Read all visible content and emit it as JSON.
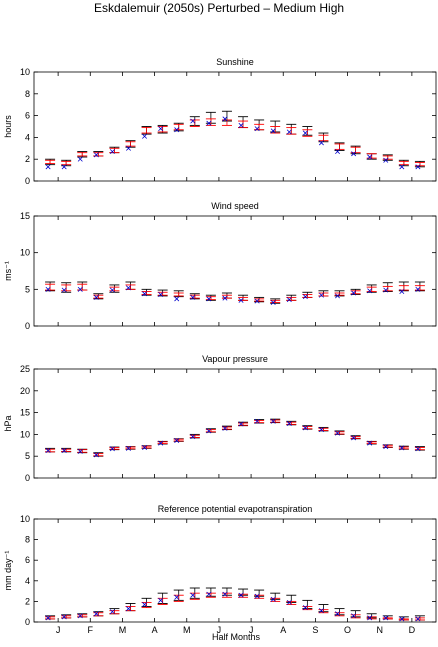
{
  "title": "Eskdalemuir (2050s) Perturbed – Medium High",
  "colors": {
    "error_bar": "#000000",
    "red_bar": "#ff0000",
    "marker": "#0000cc"
  },
  "x_axis": {
    "label": "Half Months",
    "ticks": [
      "J",
      "F",
      "M",
      "A",
      "M",
      "J",
      "J",
      "A",
      "S",
      "O",
      "N",
      "D"
    ]
  },
  "chart_data": [
    {
      "type": "errorbar",
      "title": "Sunshine",
      "ylabel": "hours",
      "ylim": [
        0,
        10
      ],
      "yticks": [
        0,
        2,
        4,
        6,
        8,
        10
      ],
      "x": [
        1,
        2,
        3,
        4,
        5,
        6,
        7,
        8,
        9,
        10,
        11,
        12,
        13,
        14,
        15,
        16,
        17,
        18,
        19,
        20,
        21,
        22,
        23,
        24
      ],
      "black_low": [
        1.5,
        1.4,
        2.2,
        2.3,
        2.6,
        3.1,
        4.3,
        4.4,
        4.6,
        5.1,
        5.3,
        5.5,
        4.9,
        4.7,
        4.5,
        4.3,
        4.2,
        3.6,
        2.8,
        2.5,
        2.0,
        1.9,
        1.4,
        1.3
      ],
      "black_high": [
        2.0,
        1.9,
        2.7,
        2.7,
        3.1,
        3.7,
        5.0,
        5.1,
        5.3,
        5.9,
        6.3,
        6.4,
        5.9,
        5.6,
        5.5,
        5.2,
        5.0,
        4.4,
        3.5,
        3.2,
        2.5,
        2.4,
        1.9,
        1.8
      ],
      "red_low": [
        1.6,
        1.5,
        2.3,
        2.3,
        2.6,
        3.2,
        4.4,
        4.5,
        4.7,
        5.0,
        5.1,
        5.1,
        4.9,
        4.7,
        4.4,
        4.3,
        4.1,
        3.7,
        2.9,
        2.6,
        2.1,
        2.0,
        1.5,
        1.4
      ],
      "red_high": [
        1.9,
        1.8,
        2.6,
        2.6,
        3.0,
        3.6,
        4.9,
        5.0,
        5.2,
        5.6,
        5.7,
        5.6,
        5.5,
        5.2,
        5.0,
        4.9,
        4.7,
        4.2,
        3.4,
        3.1,
        2.5,
        2.3,
        1.8,
        1.7
      ],
      "marker": [
        1.3,
        1.3,
        2.0,
        2.4,
        2.7,
        3.0,
        4.1,
        4.8,
        4.7,
        5.5,
        5.3,
        5.7,
        5.1,
        4.8,
        4.6,
        4.5,
        4.4,
        3.5,
        2.7,
        2.5,
        2.2,
        1.9,
        1.3,
        1.3
      ]
    },
    {
      "type": "errorbar",
      "title": "Wind speed",
      "ylabel": "ms⁻¹",
      "ylim": [
        0,
        15
      ],
      "yticks": [
        0,
        5,
        10,
        15
      ],
      "x": [
        1,
        2,
        3,
        4,
        5,
        6,
        7,
        8,
        9,
        10,
        11,
        12,
        13,
        14,
        15,
        16,
        17,
        18,
        19,
        20,
        21,
        22,
        23,
        24
      ],
      "black_low": [
        4.8,
        4.6,
        4.9,
        3.7,
        4.6,
        5.0,
        4.2,
        4.1,
        4.0,
        3.7,
        3.5,
        3.8,
        3.5,
        3.3,
        3.1,
        3.5,
        3.9,
        4.1,
        4.1,
        4.3,
        4.6,
        4.7,
        4.8,
        4.8
      ],
      "black_high": [
        6.0,
        5.9,
        6.0,
        4.4,
        5.6,
        6.0,
        5.0,
        4.9,
        4.8,
        4.4,
        4.2,
        4.5,
        4.2,
        3.9,
        3.7,
        4.2,
        4.6,
        4.8,
        4.8,
        5.0,
        5.6,
        5.9,
        6.0,
        6.0
      ],
      "red_low": [
        4.9,
        4.8,
        4.9,
        3.8,
        4.8,
        5.0,
        4.3,
        4.2,
        4.1,
        3.8,
        3.6,
        3.8,
        3.5,
        3.4,
        3.2,
        3.5,
        3.9,
        4.1,
        4.2,
        4.4,
        4.7,
        4.8,
        4.9,
        4.9
      ],
      "red_high": [
        5.7,
        5.6,
        5.7,
        4.2,
        5.3,
        5.6,
        4.7,
        4.6,
        4.5,
        4.2,
        4.0,
        4.2,
        3.9,
        3.7,
        3.5,
        3.9,
        4.3,
        4.5,
        4.5,
        4.8,
        5.3,
        5.4,
        5.5,
        5.5
      ],
      "marker": [
        5.0,
        4.9,
        5.0,
        3.9,
        4.9,
        5.2,
        4.4,
        4.3,
        3.7,
        3.9,
        3.7,
        3.8,
        3.5,
        3.4,
        3.2,
        3.6,
        4.0,
        4.2,
        4.1,
        4.5,
        4.8,
        4.9,
        4.7,
        5.0
      ]
    },
    {
      "type": "errorbar",
      "title": "Vapour pressure",
      "ylabel": "hPa",
      "ylim": [
        0,
        25
      ],
      "yticks": [
        0,
        5,
        10,
        15,
        20,
        25
      ],
      "x": [
        1,
        2,
        3,
        4,
        5,
        6,
        7,
        8,
        9,
        10,
        11,
        12,
        13,
        14,
        15,
        16,
        17,
        18,
        19,
        20,
        21,
        22,
        23,
        24
      ],
      "black_low": [
        6.0,
        6.0,
        5.8,
        5.0,
        6.5,
        6.6,
        6.8,
        7.8,
        8.4,
        9.2,
        10.5,
        11.1,
        12.0,
        12.6,
        12.7,
        12.2,
        11.2,
        10.8,
        10.0,
        9.0,
        7.8,
        7.0,
        6.6,
        6.4
      ],
      "black_high": [
        6.8,
        6.8,
        6.6,
        5.8,
        7.1,
        7.2,
        7.4,
        8.4,
        9.0,
        10.0,
        11.3,
        11.9,
        12.8,
        13.4,
        13.5,
        13.0,
        12.0,
        11.6,
        10.8,
        9.7,
        8.4,
        7.6,
        7.3,
        7.2
      ],
      "red_low": [
        6.0,
        6.1,
        5.9,
        5.1,
        6.6,
        6.7,
        6.9,
        7.9,
        8.5,
        9.3,
        10.6,
        11.2,
        12.1,
        12.7,
        12.8,
        12.3,
        11.3,
        10.9,
        10.1,
        9.1,
        7.9,
        7.1,
        6.7,
        6.5
      ],
      "red_high": [
        6.6,
        6.6,
        6.5,
        5.6,
        7.0,
        7.1,
        7.3,
        8.3,
        8.9,
        9.8,
        11.1,
        11.7,
        12.6,
        13.2,
        13.3,
        12.8,
        11.8,
        11.4,
        10.6,
        9.5,
        8.3,
        7.5,
        7.1,
        7.0
      ],
      "marker": [
        6.3,
        6.3,
        6.1,
        5.3,
        6.7,
        6.8,
        7.0,
        8.0,
        8.6,
        9.5,
        10.8,
        11.4,
        12.4,
        13.0,
        13.0,
        12.5,
        11.5,
        11.1,
        10.3,
        9.2,
        8.0,
        7.2,
        6.9,
        6.7
      ]
    },
    {
      "type": "errorbar",
      "title": "Reference potential evapotranspiration",
      "ylabel": "mm day⁻¹",
      "ylim": [
        0,
        10
      ],
      "yticks": [
        0,
        2,
        4,
        6,
        8,
        10
      ],
      "x": [
        1,
        2,
        3,
        4,
        5,
        6,
        7,
        8,
        9,
        10,
        11,
        12,
        13,
        14,
        15,
        16,
        17,
        18,
        19,
        20,
        21,
        22,
        23,
        24
      ],
      "black_low": [
        0.3,
        0.4,
        0.5,
        0.6,
        0.8,
        1.1,
        1.5,
        1.8,
        2.1,
        2.3,
        2.5,
        2.6,
        2.6,
        2.5,
        2.2,
        1.9,
        1.3,
        1.0,
        0.7,
        0.5,
        0.4,
        0.3,
        0.2,
        0.2
      ],
      "black_high": [
        0.6,
        0.7,
        0.8,
        1.0,
        1.3,
        1.8,
        2.3,
        2.8,
        3.1,
        3.3,
        3.3,
        3.3,
        3.2,
        3.1,
        2.8,
        2.6,
        2.1,
        1.7,
        1.3,
        1.1,
        0.8,
        0.6,
        0.5,
        0.6
      ],
      "red_low": [
        0.3,
        0.4,
        0.5,
        0.6,
        0.8,
        1.1,
        1.4,
        1.7,
        2.0,
        2.2,
        2.4,
        2.4,
        2.4,
        2.3,
        2.0,
        1.7,
        1.2,
        0.9,
        0.6,
        0.4,
        0.3,
        0.3,
        0.2,
        0.2
      ],
      "red_high": [
        0.5,
        0.6,
        0.7,
        0.9,
        1.1,
        1.5,
        1.9,
        2.3,
        2.6,
        2.8,
        2.8,
        2.8,
        2.7,
        2.6,
        2.3,
        2.0,
        1.5,
        1.2,
        0.9,
        0.7,
        0.5,
        0.4,
        0.3,
        0.4
      ],
      "marker": [
        0.4,
        0.5,
        0.6,
        0.8,
        1.0,
        1.3,
        1.7,
        2.1,
        2.4,
        2.6,
        2.7,
        2.7,
        2.6,
        2.5,
        2.2,
        1.9,
        1.4,
        1.1,
        0.8,
        0.6,
        0.4,
        0.4,
        0.3,
        0.3
      ]
    }
  ]
}
